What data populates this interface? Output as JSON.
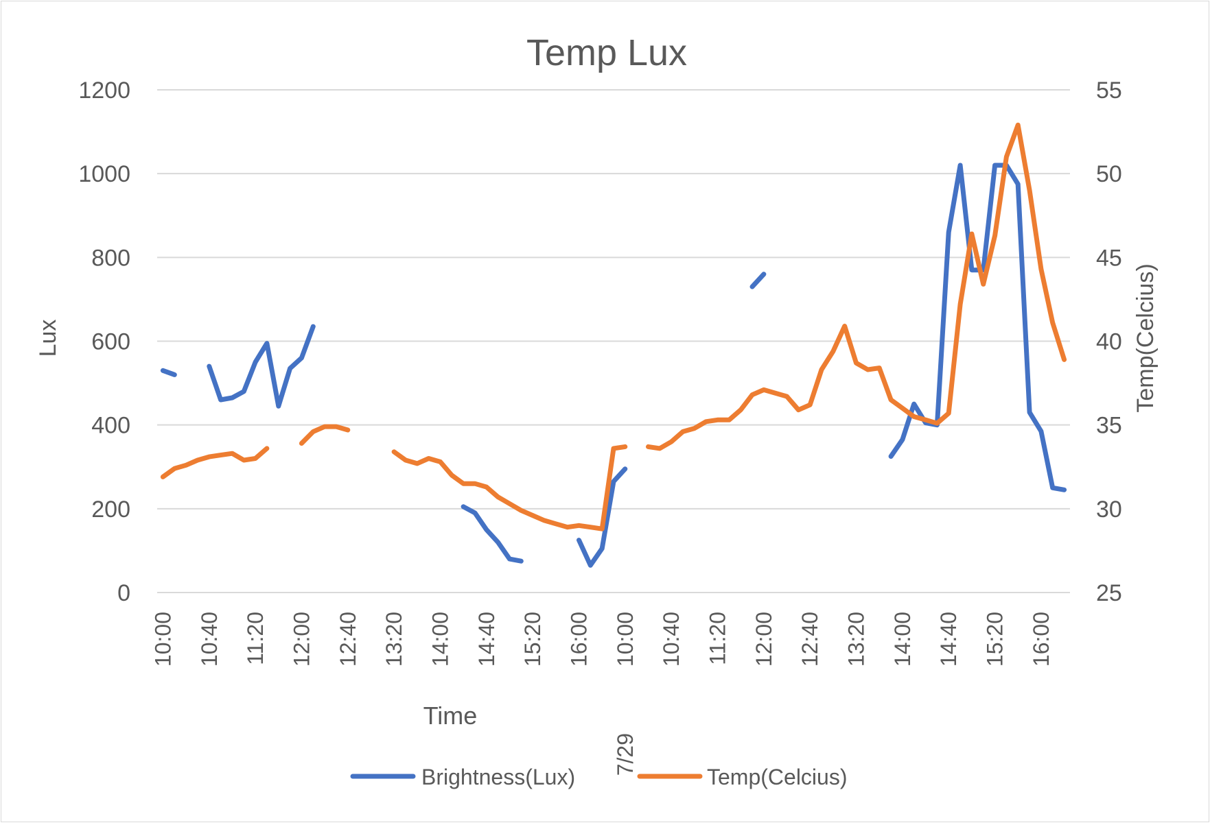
{
  "chart_data": {
    "type": "line",
    "title": "Temp Lux",
    "xlabel": "Time",
    "ylabel_left": "Lux",
    "ylabel_right": "Temp(Celcius)",
    "ylim_left": [
      0,
      1200
    ],
    "ylim_right": [
      25,
      55
    ],
    "yticks_left": [
      "0",
      "200",
      "400",
      "600",
      "800",
      "1000",
      "1200"
    ],
    "yticks_right": [
      "25",
      "30",
      "35",
      "40",
      "45",
      "50",
      "55"
    ],
    "grid": "horizontal",
    "legend_position": "bottom",
    "x_tick_labels": [
      {
        "index": 0,
        "label": "10:00"
      },
      {
        "index": 4,
        "label": "10:40"
      },
      {
        "index": 8,
        "label": "11:20"
      },
      {
        "index": 12,
        "label": "12:00"
      },
      {
        "index": 16,
        "label": "12:40"
      },
      {
        "index": 20,
        "label": "13:20"
      },
      {
        "index": 24,
        "label": "14:00"
      },
      {
        "index": 28,
        "label": "14:40"
      },
      {
        "index": 32,
        "label": "15:20"
      },
      {
        "index": 36,
        "label": "16:00"
      },
      {
        "index": 40,
        "label": "10:00"
      },
      {
        "index": 44,
        "label": "10:40"
      },
      {
        "index": 48,
        "label": "11:20"
      },
      {
        "index": 52,
        "label": "12:00"
      },
      {
        "index": 56,
        "label": "12:40"
      },
      {
        "index": 60,
        "label": "13:20"
      },
      {
        "index": 64,
        "label": "14:00"
      },
      {
        "index": 68,
        "label": "14:40"
      },
      {
        "index": 72,
        "label": "15:20"
      },
      {
        "index": 76,
        "label": "16:00"
      }
    ],
    "x_group_labels": [
      {
        "index": 40,
        "label": "7/29"
      }
    ],
    "series": [
      {
        "name": "Brightness(Lux)",
        "color": "#4472c4",
        "values": [
          530,
          520,
          null,
          null,
          540,
          460,
          465,
          480,
          550,
          595,
          445,
          535,
          560,
          635,
          null,
          null,
          null,
          null,
          null,
          null,
          null,
          null,
          null,
          null,
          null,
          null,
          205,
          190,
          150,
          120,
          80,
          75,
          null,
          null,
          null,
          null,
          125,
          65,
          105,
          265,
          295,
          null,
          null,
          null,
          null,
          null,
          null,
          null,
          null,
          null,
          null,
          730,
          760,
          null,
          null,
          null,
          null,
          null,
          null,
          null,
          null,
          null,
          null,
          325,
          365,
          450,
          405,
          400,
          860,
          1020,
          770,
          770,
          1020,
          1020,
          975,
          430,
          385,
          250,
          245
        ]
      },
      {
        "name": "Temp(Celcius)",
        "color": "#ed7d31",
        "values": [
          31.9,
          32.4,
          32.6,
          32.9,
          33.1,
          33.2,
          33.3,
          32.9,
          33.0,
          33.6,
          null,
          null,
          33.9,
          34.6,
          34.9,
          34.9,
          34.7,
          null,
          null,
          null,
          33.4,
          32.9,
          32.7,
          33.0,
          32.8,
          32.0,
          31.5,
          31.5,
          31.3,
          30.7,
          30.3,
          29.9,
          29.6,
          29.3,
          29.1,
          28.9,
          29.0,
          28.9,
          28.8,
          33.6,
          33.7,
          null,
          33.7,
          33.6,
          34.0,
          34.6,
          34.8,
          35.2,
          35.3,
          35.3,
          35.9,
          36.8,
          37.1,
          36.9,
          36.7,
          35.9,
          36.2,
          38.3,
          39.4,
          40.9,
          38.7,
          38.3,
          38.4,
          36.5,
          36.0,
          35.5,
          35.3,
          35.1,
          35.7,
          42.2,
          46.4,
          43.4,
          46.3,
          51.0,
          52.9,
          49.0,
          44.3,
          41.1,
          38.9
        ]
      }
    ]
  }
}
